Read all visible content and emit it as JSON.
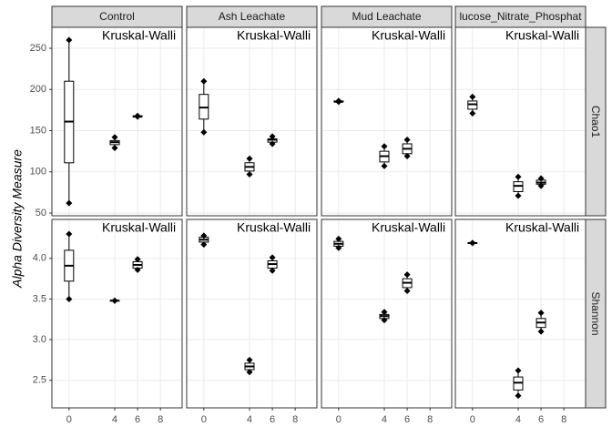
{
  "chart_data": {
    "type": "boxplot",
    "y_label": "Alpha Diversity Measure",
    "columns": [
      "Control",
      "Ash Leachate",
      "Mud Leachate",
      "lucose_Nitrate_Phosphat"
    ],
    "annotation": "Kruskal-Walli",
    "xlim": [
      -1.5,
      9.9
    ],
    "xticks": [
      0,
      4,
      6,
      8
    ],
    "grid": true,
    "rows": [
      {
        "name": "Chao1",
        "ylim": [
          46.7,
          275.4
        ],
        "yticks": [
          50,
          100,
          150,
          200,
          250
        ],
        "panels": [
          [
            {
              "x": 0,
              "min": 62,
              "q1": 111,
              "median": 161,
              "q3": 210,
              "max": 260
            },
            {
              "x": 4,
              "min": 129,
              "q1": 133,
              "median": 136,
              "q3": 138,
              "max": 142
            },
            {
              "x": 6,
              "min": 167,
              "q1": 167,
              "median": 167,
              "q3": 168,
              "max": 168
            }
          ],
          [
            {
              "x": 0,
              "min": 148,
              "q1": 164,
              "median": 178,
              "q3": 194,
              "max": 210
            },
            {
              "x": 4,
              "min": 97,
              "q1": 101,
              "median": 106,
              "q3": 111,
              "max": 116
            },
            {
              "x": 6,
              "min": 134,
              "q1": 136,
              "median": 139,
              "q3": 140,
              "max": 143
            }
          ],
          [
            {
              "x": 0,
              "min": 185,
              "q1": 185,
              "median": 185,
              "q3": 186,
              "max": 186
            },
            {
              "x": 4,
              "min": 107,
              "q1": 112,
              "median": 119,
              "q3": 125,
              "max": 131
            },
            {
              "x": 6,
              "min": 119,
              "q1": 122,
              "median": 128,
              "q3": 134,
              "max": 139
            }
          ],
          [
            {
              "x": 0,
              "min": 171,
              "q1": 176,
              "median": 182,
              "q3": 186,
              "max": 191
            },
            {
              "x": 4,
              "min": 71,
              "q1": 76,
              "median": 83,
              "q3": 88,
              "max": 94
            },
            {
              "x": 6,
              "min": 83,
              "q1": 85,
              "median": 87,
              "q3": 90,
              "max": 92
            }
          ]
        ]
      },
      {
        "name": "Shannon",
        "ylim": [
          2.16,
          4.48
        ],
        "yticks": [
          2.5,
          {
            "value": 3,
            "label": "3.0"
          },
          3.5,
          {
            "value": 4,
            "label": "4.0"
          }
        ],
        "panels": [
          [
            {
              "x": 0,
              "min": 3.5,
              "q1": 3.72,
              "median": 3.91,
              "q3": 4.1,
              "max": 4.3
            },
            {
              "x": 4,
              "min": 3.48,
              "q1": 3.48,
              "median": 3.48,
              "q3": 3.48,
              "max": 3.48
            },
            {
              "x": 6,
              "min": 3.86,
              "q1": 3.88,
              "median": 3.92,
              "q3": 3.96,
              "max": 3.99
            }
          ],
          [
            {
              "x": 0,
              "min": 4.17,
              "q1": 4.2,
              "median": 4.23,
              "q3": 4.26,
              "max": 4.28
            },
            {
              "x": 4,
              "min": 2.6,
              "q1": 2.63,
              "median": 2.67,
              "q3": 2.71,
              "max": 2.75
            },
            {
              "x": 6,
              "min": 3.85,
              "q1": 3.88,
              "median": 3.93,
              "q3": 3.97,
              "max": 4.01
            }
          ],
          [
            {
              "x": 0,
              "min": 4.13,
              "q1": 4.15,
              "median": 4.18,
              "q3": 4.21,
              "max": 4.24
            },
            {
              "x": 4,
              "min": 3.24,
              "q1": 3.26,
              "median": 3.29,
              "q3": 3.31,
              "max": 3.34
            },
            {
              "x": 6,
              "min": 3.6,
              "q1": 3.64,
              "median": 3.7,
              "q3": 3.75,
              "max": 3.8
            }
          ],
          [
            {
              "x": 0,
              "min": 4.19,
              "q1": 4.19,
              "median": 4.19,
              "q3": 4.19,
              "max": 4.19
            },
            {
              "x": 4,
              "min": 2.31,
              "q1": 2.38,
              "median": 2.47,
              "q3": 2.54,
              "max": 2.62
            },
            {
              "x": 6,
              "min": 3.1,
              "q1": 3.15,
              "median": 3.21,
              "q3": 3.26,
              "max": 3.33
            }
          ]
        ]
      }
    ]
  }
}
